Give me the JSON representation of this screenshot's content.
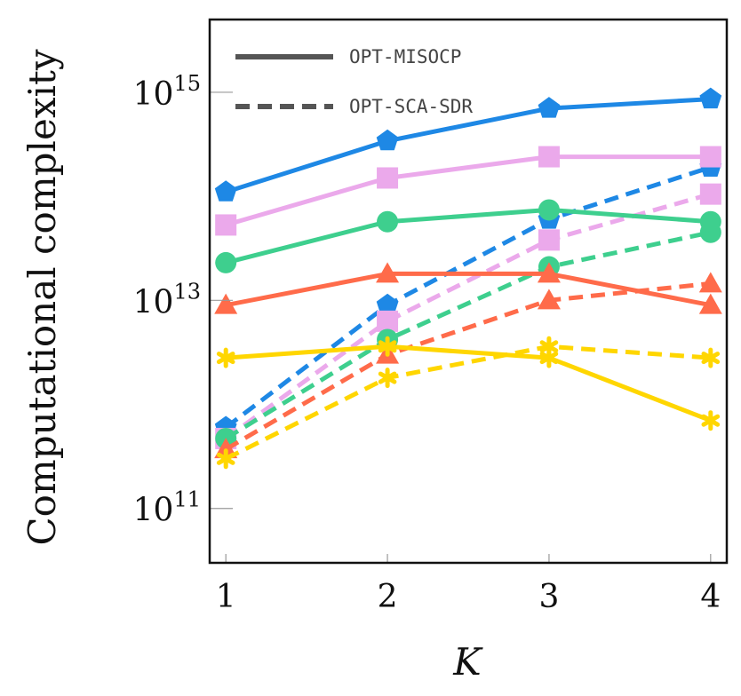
{
  "chart_data": {
    "type": "line",
    "xlabel": "K",
    "ylabel": "Computational complexity",
    "y_scale": "log",
    "ylim": [
      30000000000.0,
      5000000000000000.0
    ],
    "xlim": [
      0.9,
      4.1
    ],
    "x": [
      1,
      2,
      3,
      4
    ],
    "x_tick_labels": [
      "1",
      "2",
      "3",
      "4"
    ],
    "y_ticks": [
      {
        "value": 100000000000.0,
        "base": "10",
        "exp": "11"
      },
      {
        "value": 10000000000000.0,
        "base": "10",
        "exp": "13"
      },
      {
        "value": 1000000000000000.0,
        "base": "10",
        "exp": "15"
      }
    ],
    "legend": {
      "position": "top-left",
      "entries": [
        {
          "label": "OPT-MISOCP",
          "style": "solid"
        },
        {
          "label": "OPT-SCA-SDR",
          "style": "dashed"
        }
      ]
    },
    "series": [
      {
        "method": "OPT-MISOCP",
        "style": "solid",
        "color": "#1E88E5",
        "marker": "pentagon",
        "values": [
          110000000000000.0,
          340000000000000.0,
          700000000000000.0,
          860000000000000.0
        ]
      },
      {
        "method": "OPT-MISOCP",
        "style": "solid",
        "color": "#EBA9EB",
        "marker": "square",
        "values": [
          53000000000000.0,
          150000000000000.0,
          240000000000000.0,
          240000000000000.0
        ]
      },
      {
        "method": "OPT-MISOCP",
        "style": "solid",
        "color": "#3ECF8E",
        "marker": "circle",
        "values": [
          23000000000000.0,
          57000000000000.0,
          74000000000000.0,
          57000000000000.0
        ]
      },
      {
        "method": "OPT-MISOCP",
        "style": "solid",
        "color": "#FF6B4A",
        "marker": "triangle",
        "values": [
          9000000000000.0,
          18000000000000.0,
          18000000000000.0,
          9000000000000.0
        ]
      },
      {
        "method": "OPT-MISOCP",
        "style": "solid",
        "color": "#FFD600",
        "marker": "star",
        "values": [
          2800000000000.0,
          3600000000000.0,
          2800000000000.0,
          700000000000.0
        ]
      },
      {
        "method": "OPT-SCA-SDR",
        "style": "dashed",
        "color": "#1E88E5",
        "marker": "pentagon",
        "values": [
          600000000000.0,
          9000000000000.0,
          60000000000000.0,
          190000000000000.0
        ]
      },
      {
        "method": "OPT-SCA-SDR",
        "style": "dashed",
        "color": "#EBA9EB",
        "marker": "square",
        "values": [
          470000000000.0,
          6300000000000.0,
          38000000000000.0,
          105000000000000.0
        ]
      },
      {
        "method": "OPT-SCA-SDR",
        "style": "dashed",
        "color": "#3ECF8E",
        "marker": "circle",
        "values": [
          470000000000.0,
          4200000000000.0,
          21000000000000.0,
          45000000000000.0
        ]
      },
      {
        "method": "OPT-SCA-SDR",
        "style": "dashed",
        "color": "#FF6B4A",
        "marker": "triangle",
        "values": [
          370000000000.0,
          3000000000000.0,
          10000000000000.0,
          14500000000000.0
        ]
      },
      {
        "method": "OPT-SCA-SDR",
        "style": "dashed",
        "color": "#FFD600",
        "marker": "star",
        "values": [
          300000000000.0,
          1800000000000.0,
          3600000000000.0,
          2800000000000.0
        ]
      }
    ]
  }
}
